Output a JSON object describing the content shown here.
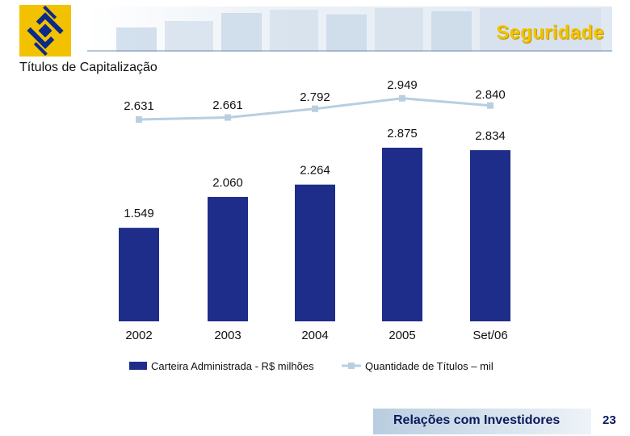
{
  "header": {
    "section_title": "Seguridade",
    "page_title": "Títulos de Capitalização"
  },
  "footer": {
    "label": "Relações com Investidores",
    "page_number": "23"
  },
  "colors": {
    "bar": "#1f2d8a",
    "line": "#b7cfe0",
    "brand_yellow": "#f2c200",
    "brand_navy": "#0a1a5c"
  },
  "chart_data": {
    "type": "bar",
    "title": "",
    "categories": [
      "2002",
      "2003",
      "2004",
      "2005",
      "Set/06"
    ],
    "series": [
      {
        "name": "Carteira Administrada - R$ milhões",
        "type": "bar",
        "values": [
          1549,
          2060,
          2264,
          2875,
          2834
        ],
        "labels": [
          "1.549",
          "2.060",
          "2.264",
          "2.875",
          "2.834"
        ]
      },
      {
        "name": "Quantidade de Títulos – mil",
        "type": "line",
        "values": [
          2631,
          2661,
          2792,
          2949,
          2840
        ],
        "labels": [
          "2.631",
          "2.661",
          "2.792",
          "2.949",
          "2.840"
        ]
      }
    ],
    "legend_position": "bottom",
    "grid": false
  }
}
